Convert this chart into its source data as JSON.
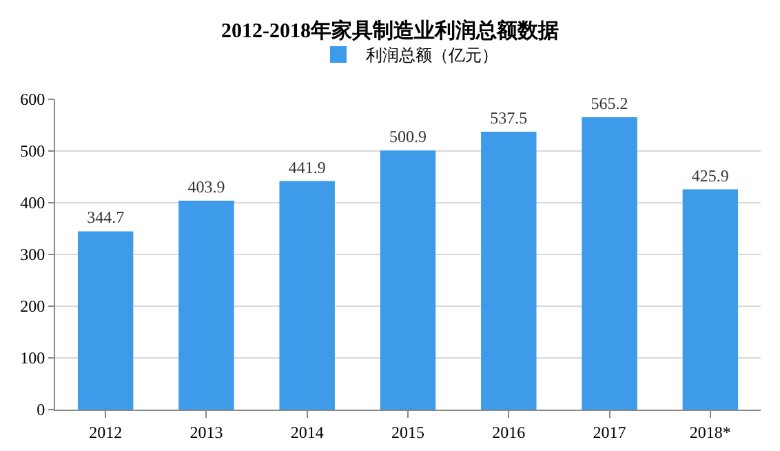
{
  "chart_data": {
    "type": "bar",
    "title": "2012-2018年家具制造业利润总额数据",
    "categories": [
      "2012",
      "2013",
      "2014",
      "2015",
      "2016",
      "2017",
      "2018*"
    ],
    "series": [
      {
        "name": "利润总额（亿元）",
        "color": "#3d9be9",
        "values": [
          344.7,
          403.9,
          441.9,
          500.9,
          537.5,
          565.2,
          425.9
        ]
      }
    ],
    "ylim": [
      0,
      600
    ],
    "yticks": [
      0,
      100,
      200,
      300,
      400,
      500,
      600
    ],
    "grid": "y",
    "legend": "top",
    "data_labels": true
  }
}
